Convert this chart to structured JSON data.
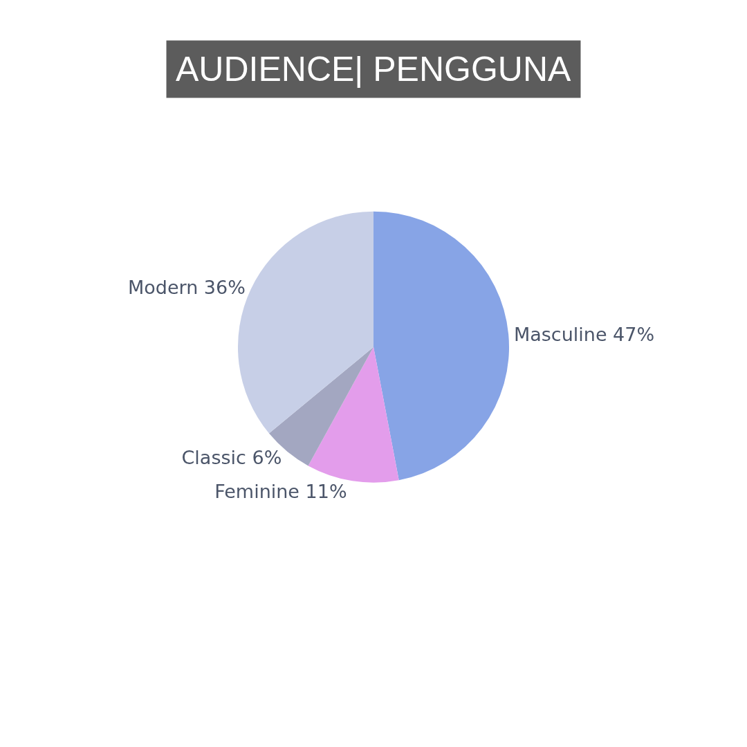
{
  "chart_data": {
    "type": "pie",
    "title": "AUDIENCE| PENGGUNA",
    "categories": [
      "Masculine",
      "Feminine",
      "Classic",
      "Modern"
    ],
    "values": [
      47,
      11,
      6,
      36
    ],
    "colors": [
      "#87a4e6",
      "#e39deb",
      "#a3a7c1",
      "#c7cfe7"
    ],
    "value_labels": [
      "47%",
      "11%",
      "6%",
      "36%"
    ]
  }
}
